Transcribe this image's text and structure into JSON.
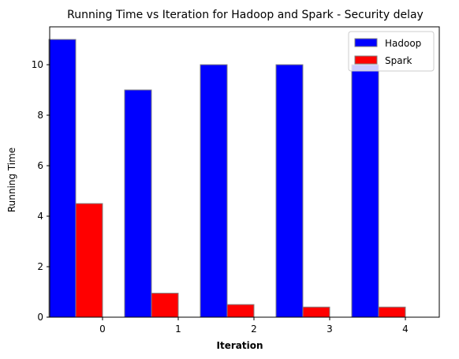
{
  "chart_data": {
    "type": "bar",
    "title": "Running Time vs Iteration for Hadoop and Spark - Security delay",
    "xlabel": "Iteration",
    "ylabel": "Running Time",
    "categories": [
      "0",
      "1",
      "2",
      "3",
      "4"
    ],
    "ylim": [
      0,
      11.5
    ],
    "yticks": [
      0,
      2,
      4,
      6,
      8,
      10
    ],
    "grid": false,
    "legend_position": "top-right",
    "series": [
      {
        "name": "Hadoop",
        "color": "#0000ff",
        "values": [
          11,
          9,
          10,
          10,
          10
        ]
      },
      {
        "name": "Spark",
        "color": "#ff0000",
        "values": [
          4.5,
          0.95,
          0.5,
          0.4,
          0.4
        ]
      }
    ]
  }
}
